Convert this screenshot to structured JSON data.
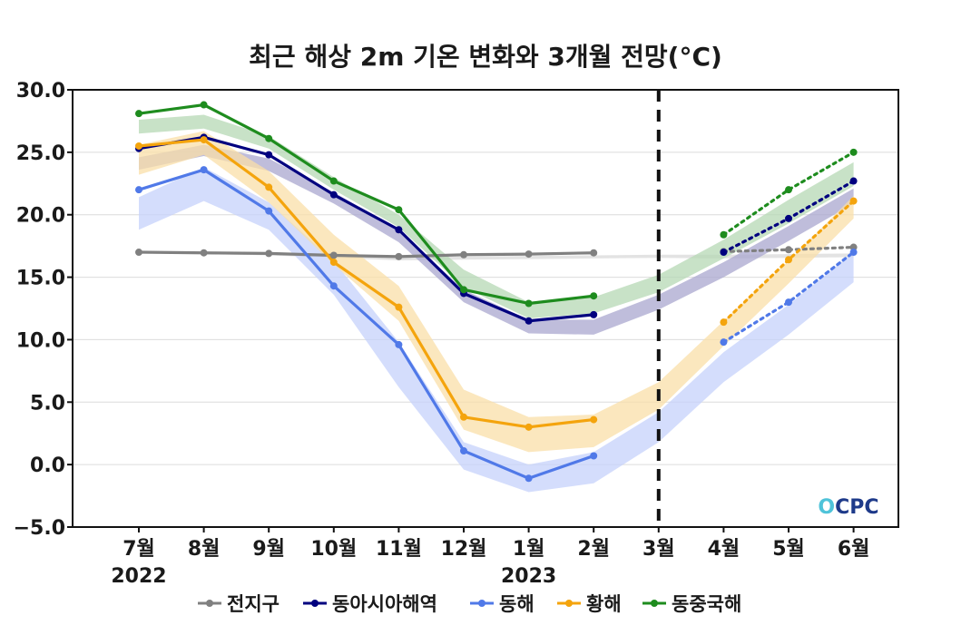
{
  "chart_data": {
    "type": "line",
    "title": "최근 해상 2m 기온 변화와 3개월 전망(°C)",
    "categories": [
      "7월",
      "8월",
      "9월",
      "10월",
      "11월",
      "12월",
      "1월",
      "2월",
      "3월",
      "4월",
      "5월",
      "6월"
    ],
    "year_labels": [
      {
        "index": 0,
        "label": "2022"
      },
      {
        "index": 6,
        "label": "2023"
      }
    ],
    "ylim": [
      -5,
      30
    ],
    "yticks": [
      30.0,
      25.0,
      20.0,
      15.0,
      10.0,
      5.0,
      0.0,
      -5.0
    ],
    "ytick_labels": [
      "30.0",
      "25.0",
      "20.0",
      "15.0",
      "10.0",
      "5.0",
      "0.0",
      "−5.0"
    ],
    "grid": true,
    "forecast_divider_index": 8,
    "legend_position": "bottom",
    "series": [
      {
        "name": "전지구",
        "color": "#808080",
        "band_color": "#d9d9d9",
        "observed": [
          [
            0,
            17.0
          ],
          [
            1,
            16.95
          ],
          [
            2,
            16.9
          ],
          [
            3,
            16.75
          ],
          [
            4,
            16.65
          ],
          [
            5,
            16.8
          ],
          [
            6,
            16.85
          ],
          [
            7,
            16.95
          ]
        ],
        "forecast": [
          [
            9,
            17.05
          ],
          [
            10,
            17.2
          ],
          [
            11,
            17.4
          ]
        ],
        "band": [
          [
            0,
            16.95,
            17.1
          ],
          [
            1,
            16.85,
            17.0
          ],
          [
            2,
            16.75,
            16.95
          ],
          [
            3,
            16.55,
            16.75
          ],
          [
            4,
            16.35,
            16.6
          ],
          [
            5,
            16.4,
            16.65
          ],
          [
            6,
            16.45,
            16.7
          ],
          [
            7,
            16.5,
            16.75
          ],
          [
            8,
            16.55,
            16.8
          ],
          [
            9,
            16.5,
            16.8
          ],
          [
            10,
            16.55,
            16.85
          ],
          [
            11,
            16.6,
            16.9
          ]
        ]
      },
      {
        "name": "동아시아해역",
        "color": "#00007f",
        "band_color": "#a9a7cf",
        "observed": [
          [
            0,
            25.3
          ],
          [
            1,
            26.2
          ],
          [
            2,
            24.8
          ],
          [
            3,
            21.6
          ],
          [
            4,
            18.8
          ],
          [
            5,
            13.7
          ],
          [
            6,
            11.5
          ],
          [
            7,
            12.0
          ]
        ],
        "forecast": [
          [
            9,
            17.0
          ],
          [
            10,
            19.7
          ],
          [
            11,
            22.7
          ]
        ],
        "band": [
          [
            0,
            23.6,
            24.6
          ],
          [
            1,
            24.7,
            25.6
          ],
          [
            2,
            23.5,
            24.5
          ],
          [
            3,
            20.9,
            21.8
          ],
          [
            4,
            17.8,
            18.8
          ],
          [
            5,
            13.0,
            14.0
          ],
          [
            6,
            10.5,
            11.6
          ],
          [
            7,
            10.4,
            11.6
          ],
          [
            8,
            12.4,
            13.6
          ],
          [
            9,
            15.0,
            16.2
          ],
          [
            10,
            17.9,
            19.1
          ],
          [
            11,
            20.9,
            22.1
          ]
        ]
      },
      {
        "name": "동해",
        "color": "#5079e8",
        "band_color": "#c6d2fb",
        "observed": [
          [
            0,
            22.0
          ],
          [
            1,
            23.6
          ],
          [
            2,
            20.3
          ],
          [
            3,
            14.3
          ],
          [
            4,
            9.6
          ],
          [
            5,
            1.1
          ],
          [
            6,
            -1.1
          ],
          [
            7,
            0.7
          ]
        ],
        "forecast": [
          [
            9,
            9.8
          ],
          [
            10,
            13.0
          ],
          [
            11,
            17.0
          ]
        ],
        "band": [
          [
            0,
            18.8,
            21.4
          ],
          [
            1,
            21.1,
            23.8
          ],
          [
            2,
            18.8,
            21.0
          ],
          [
            3,
            13.6,
            16.3
          ],
          [
            4,
            6.2,
            9.8
          ],
          [
            5,
            -0.4,
            1.8
          ],
          [
            6,
            -2.2,
            0.0
          ],
          [
            7,
            -1.5,
            1.0
          ],
          [
            8,
            1.8,
            4.2
          ],
          [
            9,
            6.6,
            9.0
          ],
          [
            10,
            10.4,
            12.8
          ],
          [
            11,
            14.6,
            17.0
          ]
        ]
      },
      {
        "name": "황해",
        "color": "#f4a40d",
        "band_color": "#fadfa8",
        "observed": [
          [
            0,
            25.5
          ],
          [
            1,
            26.0
          ],
          [
            2,
            22.2
          ],
          [
            3,
            16.2
          ],
          [
            4,
            12.6
          ],
          [
            5,
            3.8
          ],
          [
            6,
            3.0
          ],
          [
            7,
            3.6
          ]
        ],
        "forecast": [
          [
            9,
            11.4
          ],
          [
            10,
            16.4
          ],
          [
            11,
            21.1
          ]
        ],
        "band": [
          [
            0,
            23.2,
            25.6
          ],
          [
            1,
            24.8,
            26.7
          ],
          [
            2,
            21.0,
            23.5
          ],
          [
            3,
            16.0,
            18.4
          ],
          [
            4,
            11.5,
            14.3
          ],
          [
            5,
            2.8,
            6.0
          ],
          [
            6,
            1.0,
            3.8
          ],
          [
            7,
            1.4,
            4.0
          ],
          [
            8,
            4.4,
            6.6
          ],
          [
            9,
            9.5,
            11.5
          ],
          [
            10,
            14.5,
            16.3
          ],
          [
            11,
            19.7,
            21.5
          ]
        ]
      },
      {
        "name": "동중국해",
        "color": "#1e8c1e",
        "band_color": "#b6d8b4",
        "observed": [
          [
            0,
            28.1
          ],
          [
            1,
            28.8
          ],
          [
            2,
            26.1
          ],
          [
            3,
            22.7
          ],
          [
            4,
            20.4
          ],
          [
            5,
            14.0
          ],
          [
            6,
            12.9
          ],
          [
            7,
            13.5
          ]
        ],
        "forecast": [
          [
            9,
            18.4
          ],
          [
            10,
            22.0
          ],
          [
            11,
            25.0
          ]
        ],
        "band": [
          [
            0,
            26.5,
            27.6
          ],
          [
            1,
            26.9,
            28.0
          ],
          [
            2,
            25.3,
            26.3
          ],
          [
            3,
            22.0,
            23.0
          ],
          [
            4,
            19.0,
            20.0
          ],
          [
            5,
            14.2,
            15.6
          ],
          [
            6,
            11.7,
            13.0
          ],
          [
            7,
            12.1,
            13.4
          ],
          [
            8,
            13.8,
            15.2
          ],
          [
            9,
            16.5,
            18.0
          ],
          [
            10,
            19.3,
            21.2
          ],
          [
            11,
            22.3,
            24.2
          ]
        ]
      }
    ]
  },
  "logo": {
    "text": "OCPC",
    "colors": [
      "#1e3a8a",
      "#4fc3d9"
    ]
  }
}
